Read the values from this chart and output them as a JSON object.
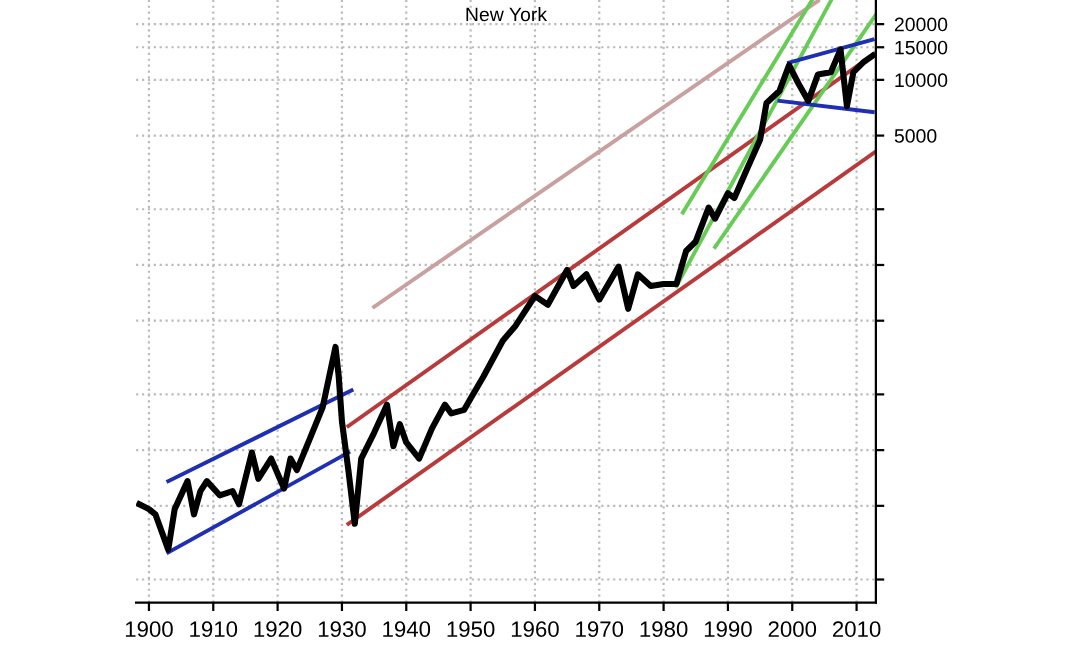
{
  "chart_data": {
    "type": "line",
    "title": "New York",
    "log": true,
    "grid": true,
    "xlim": [
      1898,
      2013
    ],
    "xticks": [
      1900,
      1910,
      1920,
      1930,
      1940,
      1950,
      1960,
      1970,
      1980,
      1990,
      2000,
      2010
    ],
    "ylim": [
      15,
      27000
    ],
    "yticks": [
      {
        "value": 20,
        "label": null
      },
      {
        "value": 50,
        "label": null
      },
      {
        "value": 100,
        "label": null
      },
      {
        "value": 200,
        "label": null
      },
      {
        "value": 500,
        "label": null
      },
      {
        "value": 1000,
        "label": null
      },
      {
        "value": 2000,
        "label": null
      },
      5000,
      10000,
      15000,
      20000
    ],
    "series": [
      {
        "color": "#000000",
        "x": [
          1898.5,
          1900,
          1901,
          1903,
          1904,
          1906,
          1907,
          1908,
          1909,
          1911,
          1913,
          1914,
          1916,
          1917,
          1919,
          1921,
          1922,
          1923,
          1925,
          1927,
          1929,
          1929.5,
          1930,
          1931,
          1932,
          1933,
          1935,
          1937,
          1938,
          1939,
          1940,
          1942,
          1944,
          1946,
          1947,
          1949,
          1950,
          1952,
          1955,
          1957,
          1960,
          1962,
          1965,
          1966,
          1968,
          1970,
          1973,
          1974.5,
          1976,
          1978,
          1980,
          1982,
          1983.5,
          1985,
          1987,
          1988,
          1990,
          1991,
          1993,
          1995,
          1996,
          1998,
          1999.5,
          2001,
          2002.5,
          2004,
          2006,
          2007.5,
          2008.5,
          2009.5,
          2011,
          2012.5
        ],
        "values": [
          51,
          48,
          45,
          29,
          48,
          68,
          45,
          60,
          68,
          57,
          60,
          51,
          97,
          70,
          90,
          62,
          90,
          78,
          115,
          170,
          361,
          250,
          143,
          78,
          40,
          90,
          124,
          176,
          105,
          138,
          110,
          90,
          131,
          176,
          158,
          165,
          190,
          250,
          390,
          470,
          680,
          610,
          940,
          770,
          890,
          650,
          980,
          580,
          890,
          770,
          790,
          790,
          1190,
          1340,
          2040,
          1780,
          2440,
          2300,
          3320,
          4750,
          7500,
          8700,
          12000,
          9500,
          7700,
          10700,
          11000,
          14600,
          7200,
          11000,
          12400,
          13500
        ]
      },
      {
        "color": "#1f2fb4",
        "x": [
          1903,
          1931.5
        ],
        "values": [
          68,
          210
        ]
      },
      {
        "color": "#1f2fb4",
        "x": [
          1903,
          1931
        ],
        "values": [
          28,
          97
        ]
      },
      {
        "color": "#b83a3a",
        "x": [
          1931,
          2013
        ],
        "values": [
          135,
          14000
        ]
      },
      {
        "color": "#b83a3a",
        "x": [
          1931,
          2013
        ],
        "values": [
          40,
          4100
        ]
      },
      {
        "color": "#c8a0a0",
        "x": [
          1935,
          2004
        ],
        "values": [
          595,
          26700
        ]
      },
      {
        "color": "#66cc55",
        "x": [
          1982,
          2006
        ],
        "values": [
          770,
          26700
        ]
      },
      {
        "color": "#66cc55",
        "x": [
          1983,
          2003
        ],
        "values": [
          1920,
          26700
        ]
      },
      {
        "color": "#66cc55",
        "x": [
          1988,
          2013
        ],
        "values": [
          1250,
          22500
        ]
      },
      {
        "color": "#1f2fb4",
        "x": [
          1999.5,
          2012.5
        ],
        "values": [
          12400,
          16500
        ]
      },
      {
        "color": "#1f2fb4",
        "x": [
          1998,
          2012.5
        ],
        "values": [
          7700,
          6700
        ]
      }
    ]
  }
}
